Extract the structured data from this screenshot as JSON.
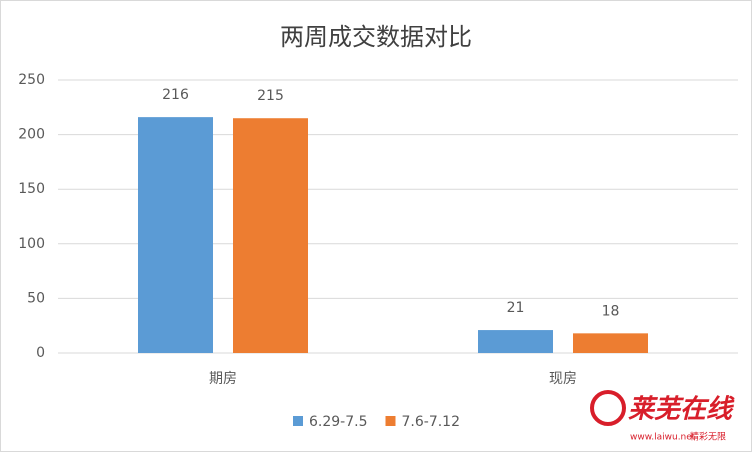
{
  "chart_data": {
    "type": "bar",
    "title": "两周成交数据对比",
    "categories": [
      "期房",
      "现房"
    ],
    "series": [
      {
        "name": "6.29-7.5",
        "color": "#5b9bd5",
        "values": [
          216,
          21
        ]
      },
      {
        "name": "7.6-7.12",
        "color": "#ed7d31",
        "values": [
          215,
          18
        ]
      }
    ],
    "ylim": [
      0,
      250
    ],
    "yticks": [
      0,
      50,
      100,
      150,
      200,
      250
    ],
    "grid": true,
    "legend": "bottom"
  },
  "watermark": {
    "title": "莱芜在线",
    "url": "www.laiwu.net",
    "slogan": "精彩无限"
  }
}
